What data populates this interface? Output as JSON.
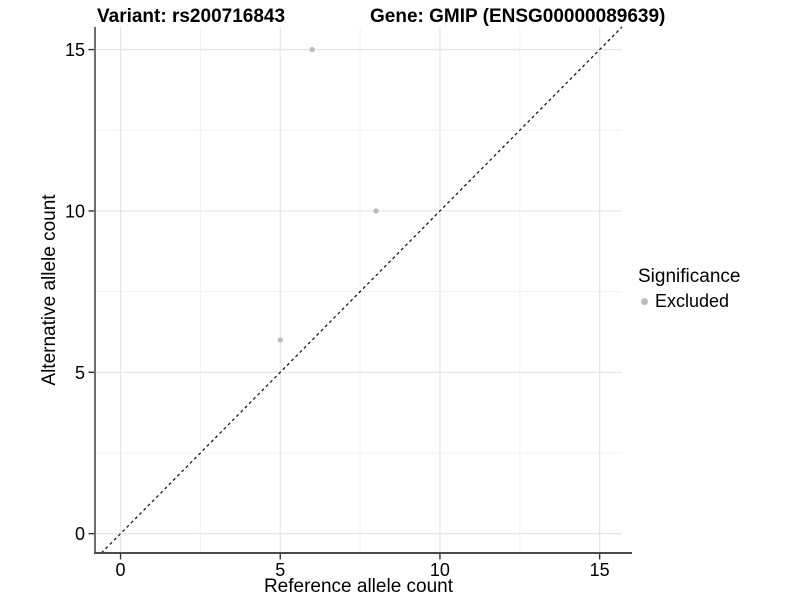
{
  "figure": {
    "title_left": "Variant: rs200716843",
    "title_right": "Gene: GMIP (ENSG00000089639)"
  },
  "chart_data": {
    "type": "scatter",
    "title": "Variant: rs200716843        Gene: GMIP (ENSG00000089639)",
    "xlabel": "Reference allele count",
    "ylabel": "Alternative allele count",
    "xlim": [
      -0.8,
      15.7
    ],
    "ylim": [
      -0.6,
      15.7
    ],
    "x_ticks": [
      0,
      5,
      10,
      15
    ],
    "y_ticks": [
      0,
      5,
      10,
      15
    ],
    "x_minor_ticks": [
      2.5,
      7.5,
      12.5
    ],
    "y_minor_ticks": [
      2.5,
      7.5,
      12.5
    ],
    "grid": "major and minor gridlines on white panel",
    "series": [
      {
        "name": "Excluded",
        "marker": "circle",
        "color": "#bdbdbd",
        "points": [
          {
            "x": 6,
            "y": 15
          },
          {
            "x": 8,
            "y": 10
          },
          {
            "x": 5,
            "y": 6
          }
        ]
      }
    ],
    "reference_line": {
      "kind": "identity",
      "slope": 1,
      "intercept": 0,
      "style": "dashed",
      "color": "#1a1a1a"
    },
    "legend": {
      "title": "Significance",
      "position": "right-middle",
      "items": [
        {
          "label": "Excluded",
          "marker": "circle",
          "color": "#bdbdbd"
        }
      ]
    }
  },
  "colors": {
    "background": "#ffffff",
    "grid_major": "#e5e5e5",
    "grid_minor": "#f2f2f2",
    "axis_line": "#4a4a4a",
    "tick": "#333333",
    "text": "#000000",
    "point": "#bdbdbd"
  }
}
